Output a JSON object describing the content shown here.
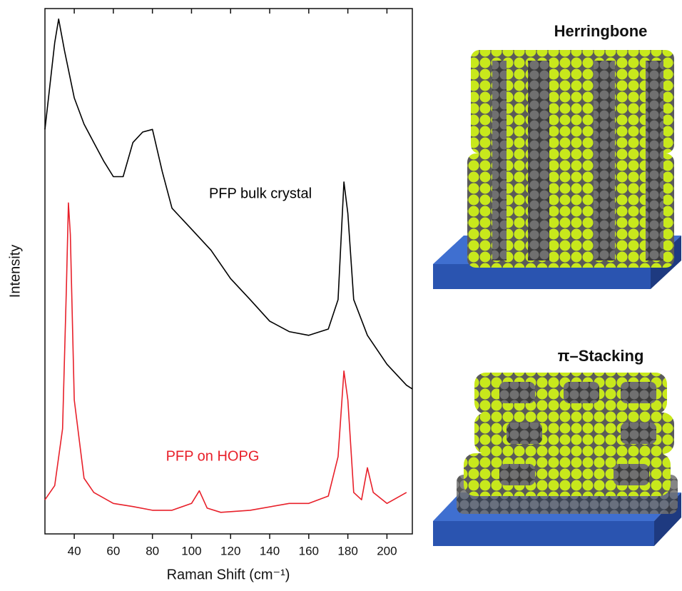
{
  "chart_data": {
    "type": "line",
    "x_label": "Raman Shift (cm⁻¹)",
    "y_label": "Intensity",
    "xlim": [
      25,
      213
    ],
    "xticks": [
      40,
      60,
      80,
      100,
      120,
      140,
      160,
      180,
      200
    ],
    "ylim": [
      0,
      100
    ],
    "series": [
      {
        "name": "PFP bulk crystal",
        "color": "#000000",
        "x": [
          25,
          30,
          32,
          35,
          40,
          45,
          50,
          55,
          60,
          65,
          70,
          75,
          80,
          85,
          90,
          100,
          110,
          120,
          130,
          140,
          150,
          160,
          170,
          175,
          178,
          180,
          183,
          190,
          200,
          210,
          213
        ],
        "values": [
          77,
          93.5,
          98,
          92,
          83,
          78,
          74.5,
          71,
          68,
          68,
          74.5,
          76.5,
          77,
          69,
          62,
          58,
          54,
          48.6,
          44.6,
          40.5,
          38.5,
          37.8,
          39,
          44.6,
          67,
          61,
          44.6,
          37.8,
          32.3,
          28.3,
          27.6
        ]
      },
      {
        "name": "PFP on HOPG",
        "color": "#e8202a",
        "x": [
          25,
          30,
          34,
          36,
          37,
          38,
          40,
          45,
          50,
          60,
          70,
          80,
          90,
          100,
          104,
          108,
          115,
          130,
          150,
          160,
          170,
          175,
          178,
          180,
          183,
          187,
          190,
          193,
          200,
          210
        ],
        "values": [
          6.5,
          9.2,
          20,
          47,
          63,
          57,
          25.5,
          10.6,
          7.9,
          5.8,
          5.2,
          4.5,
          4.5,
          5.8,
          8.2,
          4.9,
          4.1,
          4.5,
          5.8,
          5.8,
          7.2,
          14.7,
          31,
          25.5,
          7.9,
          6.5,
          12.6,
          7.9,
          5.8,
          7.9
        ]
      }
    ]
  },
  "illustrations": [
    {
      "title": "Herringbone"
    },
    {
      "title": "π–Stacking"
    }
  ]
}
